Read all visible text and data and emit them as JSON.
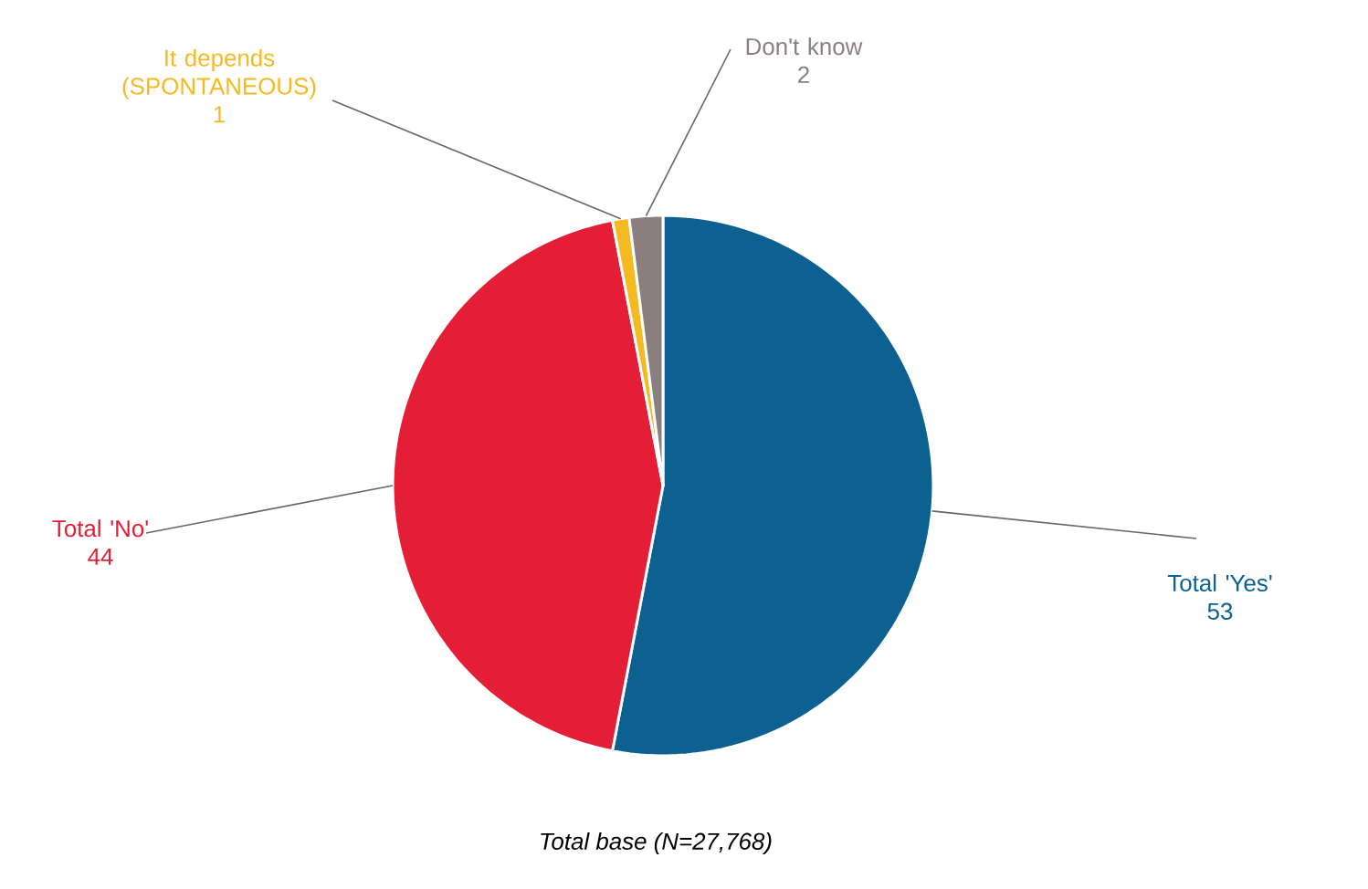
{
  "chart_data": {
    "type": "pie",
    "categories": [
      "Total 'Yes'",
      "Total 'No'",
      "It depends (SPONTANEOUS)",
      "Don't know"
    ],
    "values": [
      53,
      44,
      1,
      2
    ],
    "colors": [
      "#0d6191",
      "#e31e36",
      "#f5b921",
      "#8b7e7f"
    ],
    "data_labels": true,
    "legend": false,
    "annotations": [
      "Total base (N=27,768)"
    ]
  }
}
